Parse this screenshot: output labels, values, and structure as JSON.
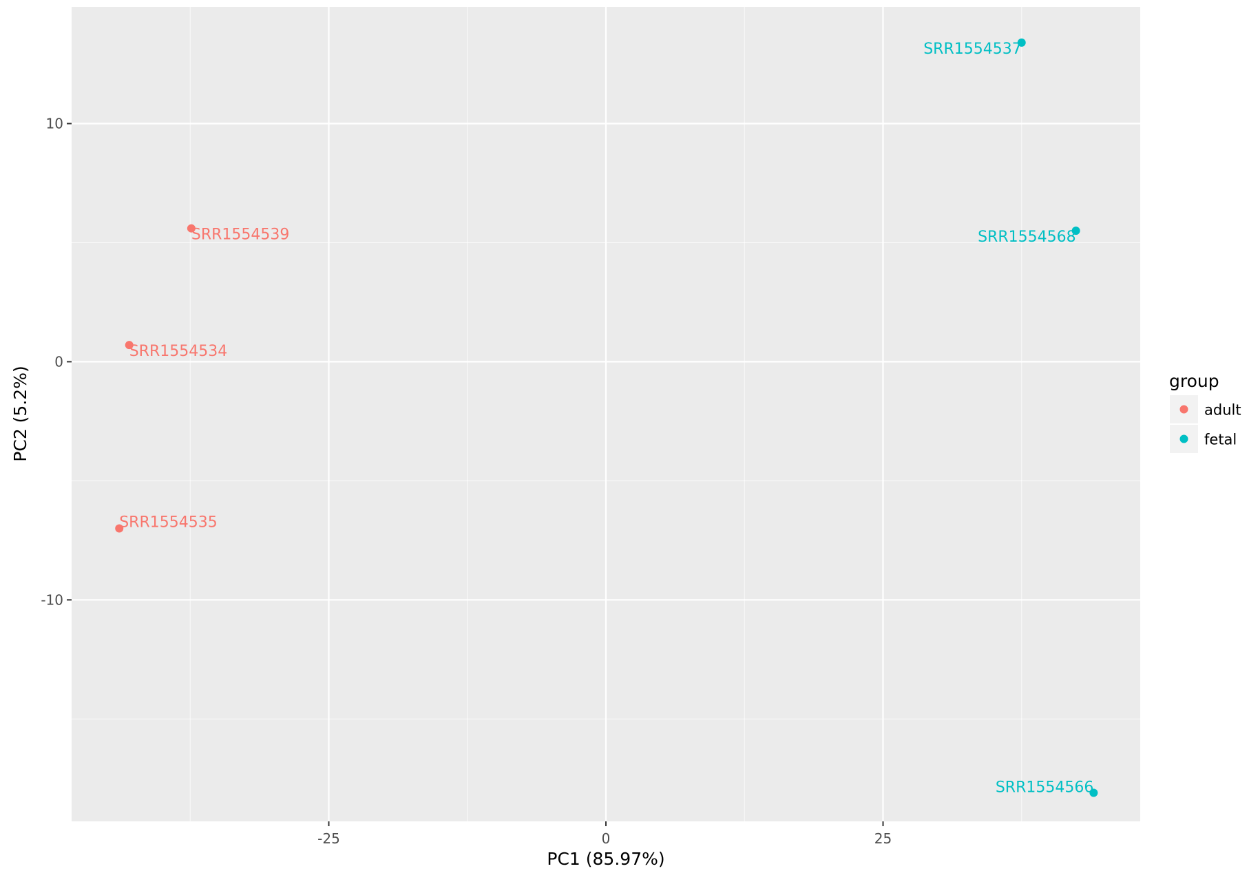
{
  "chart_data": {
    "type": "scatter",
    "title": "",
    "xlabel": "PC1 (85.97%)",
    "ylabel": "PC2 (5.2%)",
    "xlim": [
      -48.2,
      48.2
    ],
    "ylim": [
      -19.3,
      14.9
    ],
    "x_ticks": [
      -25,
      0,
      25
    ],
    "x_tick_labels": [
      "-25",
      "0",
      "25"
    ],
    "y_ticks": [
      -10,
      0,
      10
    ],
    "y_tick_labels": [
      "-10",
      "0",
      "10"
    ],
    "x_minor_ticks": [
      -37.5,
      -12.5,
      12.5,
      37.5
    ],
    "y_minor_ticks": [
      -15,
      -5,
      5
    ],
    "grid": true,
    "legend": {
      "title": "group",
      "placement": "right",
      "entries": [
        {
          "label": "adult",
          "color": "#F8766D"
        },
        {
          "label": "fetal",
          "color": "#00BFC4"
        }
      ]
    },
    "series": [
      {
        "name": "adult",
        "color": "#F8766D",
        "points": [
          {
            "x": -37.4,
            "y": 5.6,
            "label": "SRR1554539"
          },
          {
            "x": -43.0,
            "y": 0.7,
            "label": "SRR1554534"
          },
          {
            "x": -43.9,
            "y": -7.0,
            "label": "SRR1554535"
          }
        ]
      },
      {
        "name": "fetal",
        "color": "#00BFC4",
        "points": [
          {
            "x": 37.5,
            "y": 13.4,
            "label": "SRR1554537"
          },
          {
            "x": 42.4,
            "y": 5.5,
            "label": "SRR1554568"
          },
          {
            "x": 44.0,
            "y": -18.1,
            "label": "SRR1554566"
          }
        ]
      }
    ]
  },
  "colors": {
    "panel_background": "#EBEBEB",
    "grid_major": "#FFFFFF",
    "grid_minor": "#F7F7F7",
    "tick_text": "#4D4D4D",
    "axis_title": "#000000",
    "legend_key_background": "#F2F2F2"
  }
}
